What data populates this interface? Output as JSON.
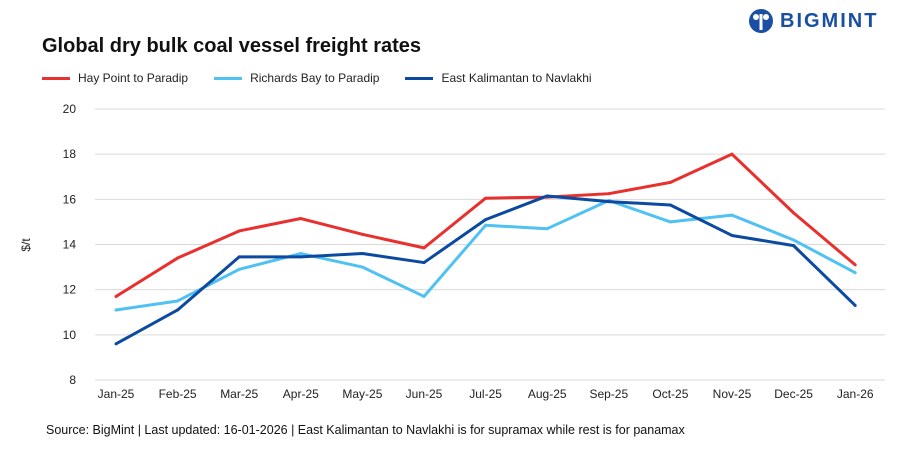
{
  "brand": {
    "name": "BIGMINT",
    "color": "#1a4fa3"
  },
  "chart_data": {
    "type": "line",
    "title": "Global dry bulk coal vessel freight rates",
    "xlabel": "",
    "ylabel": "$/t",
    "ylim": [
      8,
      20
    ],
    "yticks": [
      8,
      10,
      12,
      14,
      16,
      18,
      20
    ],
    "grid": true,
    "legend_position": "top-left",
    "categories": [
      "Jan-25",
      "Feb-25",
      "Mar-25",
      "Apr-25",
      "May-25",
      "Jun-25",
      "Jul-25",
      "Aug-25",
      "Sep-25",
      "Oct-25",
      "Nov-25",
      "Dec-25",
      "Jan-26"
    ],
    "series": [
      {
        "name": "Hay Point to Paradip",
        "color": "#e8302e",
        "values": [
          11.7,
          13.4,
          14.6,
          15.15,
          14.45,
          13.85,
          16.05,
          16.1,
          16.25,
          16.75,
          18.0,
          15.4,
          13.1
        ]
      },
      {
        "name": "Richards Bay to Paradip",
        "color": "#4fc1f2",
        "values": [
          11.1,
          11.5,
          12.9,
          13.6,
          13.0,
          11.7,
          14.85,
          14.7,
          15.95,
          15.0,
          15.3,
          14.2,
          12.75
        ]
      },
      {
        "name": "East Kalimantan to Navlakhi",
        "color": "#0b4aa0",
        "values": [
          9.6,
          11.1,
          13.45,
          13.45,
          13.6,
          13.2,
          15.1,
          16.15,
          15.9,
          15.75,
          14.4,
          13.95,
          11.3
        ]
      }
    ]
  },
  "source": "Source: BigMint | Last updated: 16-01-2026 | East Kalimantan to Navlakhi is for supramax while rest is for panamax"
}
